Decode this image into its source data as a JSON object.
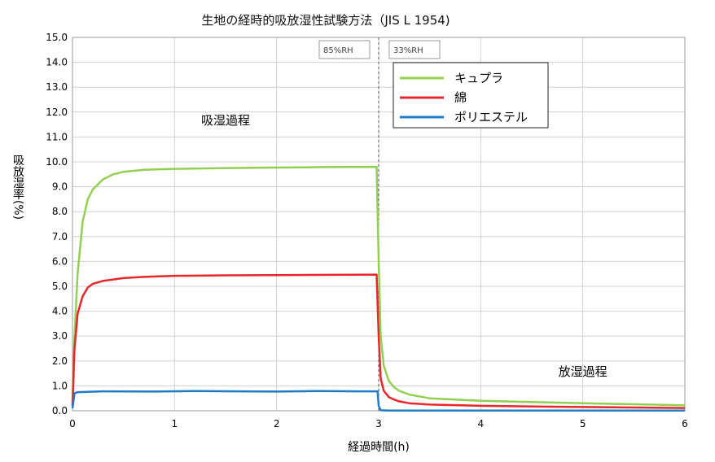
{
  "chart_data": {
    "type": "line",
    "title": "生地の経時的吸放湿性試験方法（JIS L 1954)",
    "xlabel": "経過時間(h)",
    "ylabel": "吸放湿率(%)",
    "xlim": [
      0,
      6
    ],
    "ylim": [
      0,
      15
    ],
    "x_ticks": [
      "0",
      "1",
      "2",
      "3",
      "4",
      "5",
      "6"
    ],
    "y_ticks": [
      "0.0",
      "1.0",
      "2.0",
      "3.0",
      "4.0",
      "5.0",
      "6.0",
      "7.0",
      "8.0",
      "9.0",
      "10.0",
      "11.0",
      "12.0",
      "13.0",
      "14.0",
      "15.0"
    ],
    "grid": true,
    "legend_position": "top-right",
    "phase_change_x": 3,
    "phase_labels": [
      "85%RH",
      "33%RH"
    ],
    "annotations": [
      {
        "text": "吸湿過程",
        "x": 1.5,
        "y": 11.5
      },
      {
        "text": "放湿過程",
        "x": 5.0,
        "y": 1.4
      }
    ],
    "series": [
      {
        "name": "キュプラ",
        "color": "#92d050",
        "x": [
          0,
          0.02,
          0.05,
          0.1,
          0.15,
          0.2,
          0.3,
          0.4,
          0.5,
          0.7,
          1.0,
          1.5,
          2.0,
          2.5,
          2.98,
          3.0,
          3.02,
          3.05,
          3.1,
          3.15,
          3.2,
          3.3,
          3.5,
          4.0,
          4.5,
          5.0,
          5.5,
          6.0
        ],
        "y": [
          0.3,
          3.0,
          5.5,
          7.6,
          8.5,
          8.9,
          9.3,
          9.5,
          9.6,
          9.68,
          9.72,
          9.75,
          9.77,
          9.79,
          9.8,
          6.0,
          3.0,
          1.8,
          1.2,
          0.95,
          0.8,
          0.65,
          0.5,
          0.4,
          0.35,
          0.3,
          0.26,
          0.22
        ]
      },
      {
        "name": "綿",
        "color": "#e8262b",
        "x": [
          0,
          0.02,
          0.05,
          0.1,
          0.15,
          0.2,
          0.3,
          0.5,
          0.7,
          1.0,
          1.5,
          2.0,
          2.5,
          2.98,
          3.0,
          3.02,
          3.05,
          3.1,
          3.15,
          3.2,
          3.3,
          3.5,
          4.0,
          4.5,
          5.0,
          5.5,
          6.0
        ],
        "y": [
          0.2,
          2.5,
          3.9,
          4.6,
          4.95,
          5.1,
          5.22,
          5.33,
          5.38,
          5.42,
          5.44,
          5.45,
          5.46,
          5.47,
          3.0,
          1.3,
          0.8,
          0.55,
          0.45,
          0.38,
          0.3,
          0.25,
          0.2,
          0.17,
          0.15,
          0.13,
          0.11
        ]
      },
      {
        "name": "ポリエステル",
        "color": "#1f7bc4",
        "x": [
          0,
          0.02,
          0.05,
          0.3,
          0.8,
          1.2,
          1.6,
          2.0,
          2.4,
          2.8,
          2.99,
          3.0,
          3.02,
          3.1,
          4.0,
          5.0,
          6.0
        ],
        "y": [
          0.1,
          0.7,
          0.75,
          0.78,
          0.77,
          0.79,
          0.78,
          0.77,
          0.79,
          0.78,
          0.78,
          0.2,
          0.02,
          0.01,
          0.01,
          0.01,
          0.01
        ]
      }
    ]
  }
}
